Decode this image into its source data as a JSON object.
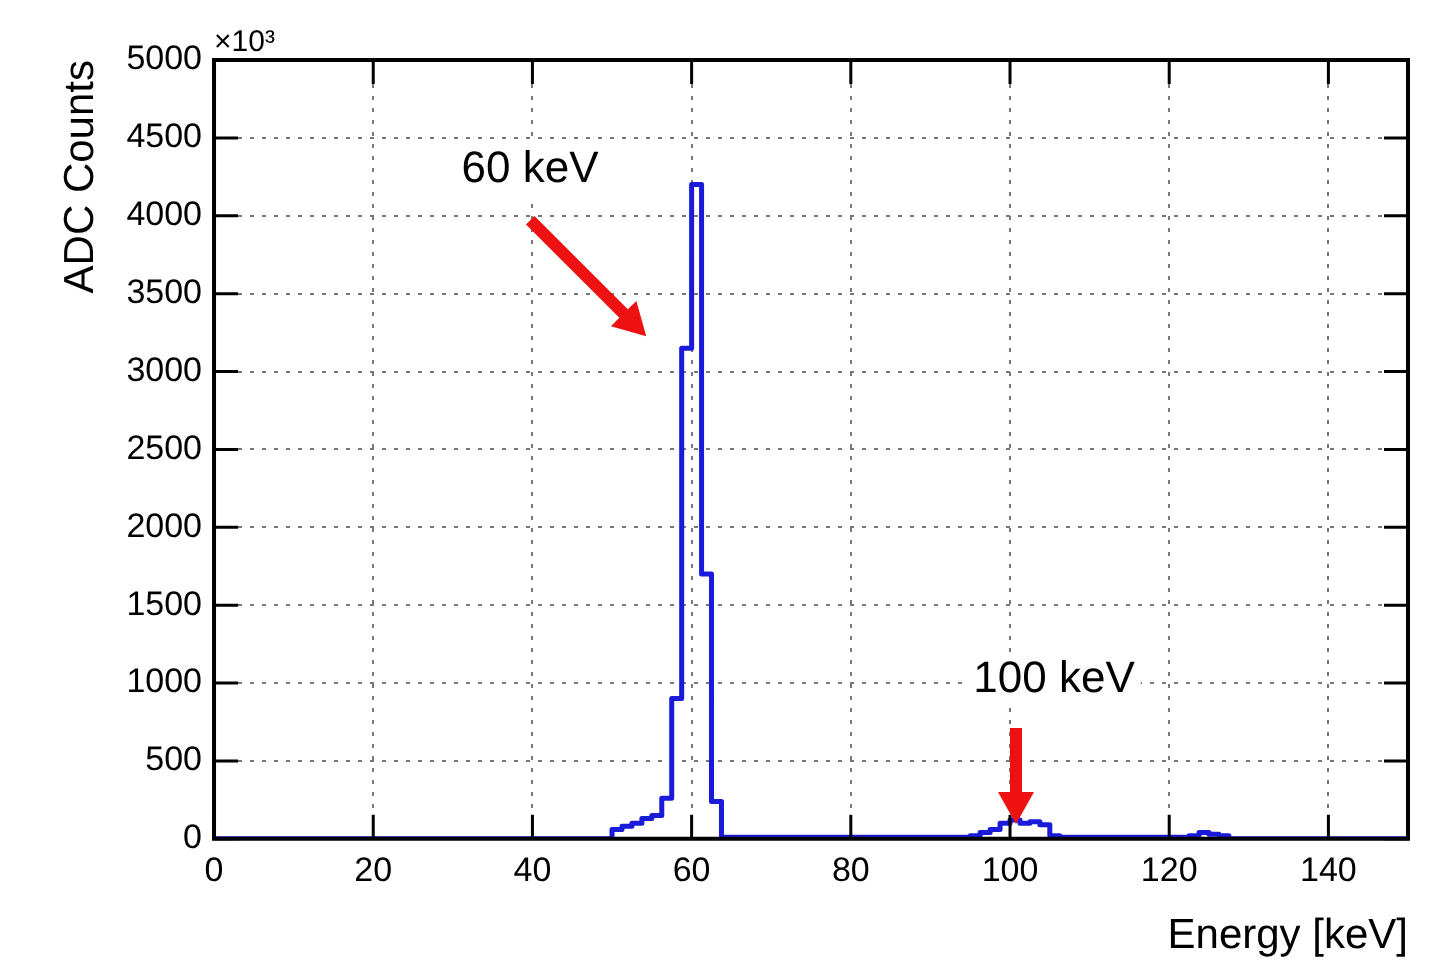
{
  "chart_data": {
    "type": "histogram",
    "xlabel": "Energy [keV]",
    "ylabel": "ADC Counts",
    "bins": [
      0,
      50,
      51.25,
      52.5,
      53.75,
      55,
      56.25,
      57.5,
      58.75,
      60,
      61.25,
      62.5,
      63.75,
      65,
      95,
      96.25,
      97.5,
      98.75,
      100,
      101.25,
      102.5,
      103.75,
      105,
      106.25,
      122.5,
      123.75,
      125,
      126.25,
      127.5,
      150
    ],
    "values": [
      0,
      60,
      80,
      100,
      130,
      150,
      260,
      900,
      3150,
      4200,
      1700,
      240,
      10,
      10,
      20,
      40,
      60,
      100,
      120,
      100,
      110,
      90,
      20,
      10,
      20,
      40,
      30,
      20,
      0
    ],
    "color": "#1a1adb",
    "xlim": [
      0,
      150
    ],
    "xticks": [
      0,
      20,
      40,
      60,
      80,
      100,
      120,
      140
    ],
    "ylim": [
      0,
      5000
    ],
    "yticks": [
      0,
      500,
      1000,
      1500,
      2000,
      2500,
      3000,
      3500,
      4000,
      4500,
      5000
    ],
    "grid": true,
    "legend": false,
    "annotations": [
      "×10³",
      "60 keV",
      "100 keV"
    ]
  }
}
